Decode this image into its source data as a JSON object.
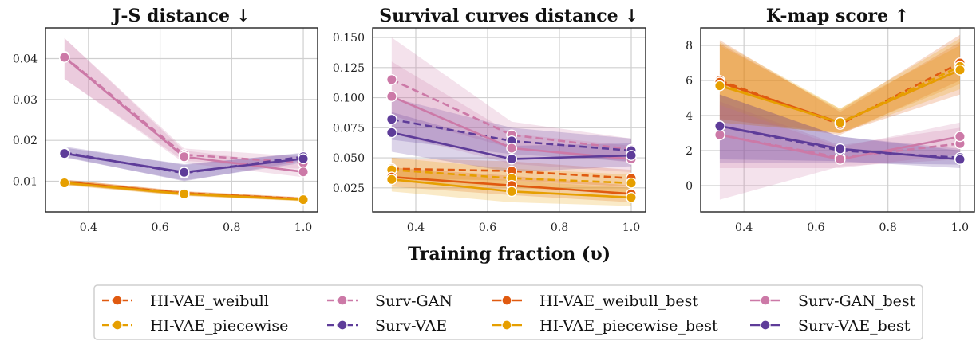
{
  "chart_data": {
    "type": "line",
    "xlabel": "Training fraction (υ)",
    "x": [
      0.333,
      0.667,
      1.0
    ],
    "series_styles": [
      {
        "name": "HI-VAE_weibull",
        "color": "#e05a10",
        "dashed": true
      },
      {
        "name": "HI-VAE_piecewise",
        "color": "#e69f00",
        "dashed": true
      },
      {
        "name": "Surv-GAN",
        "color": "#cc79a7",
        "dashed": true
      },
      {
        "name": "Surv-VAE",
        "color": "#5e3c99",
        "dashed": true
      },
      {
        "name": "HI-VAE_weibull_best",
        "color": "#e05a10",
        "dashed": false
      },
      {
        "name": "HI-VAE_piecewise_best",
        "color": "#e69f00",
        "dashed": false
      },
      {
        "name": "Surv-GAN_best",
        "color": "#cc79a7",
        "dashed": false
      },
      {
        "name": "Surv-VAE_best",
        "color": "#5e3c99",
        "dashed": false
      }
    ],
    "legend": {
      "placement": "bottom-center",
      "entries": [
        "HI-VAE_weibull",
        "HI-VAE_piecewise",
        "Surv-GAN",
        "Surv-VAE",
        "HI-VAE_weibull_best",
        "HI-VAE_piecewise_best",
        "Surv-GAN_best",
        "Surv-VAE_best"
      ]
    },
    "panels": [
      {
        "title": "J-S distance ↓",
        "xlim": [
          0.28,
          1.04
        ],
        "ylim": [
          0.0025,
          0.0475
        ],
        "xticks": [
          0.4,
          0.6,
          0.8,
          1.0
        ],
        "xtick_labels": [
          "0.4",
          "0.6",
          "0.8",
          "1.0"
        ],
        "yticks": [
          0.01,
          0.02,
          0.03,
          0.04
        ],
        "ytick_labels": [
          "0.01",
          "0.02",
          "0.03",
          "0.04"
        ],
        "series": [
          {
            "name": "HI-VAE_weibull",
            "values": [
              0.0098,
              0.0071,
              0.0057
            ],
            "lower": [
              0.0092,
              0.0066,
              0.0053
            ],
            "upper": [
              0.0104,
              0.0076,
              0.0061
            ]
          },
          {
            "name": "HI-VAE_piecewise",
            "values": [
              0.0097,
              0.007,
              0.0056
            ],
            "lower": [
              0.0091,
              0.0065,
              0.0052
            ],
            "upper": [
              0.0103,
              0.0075,
              0.006
            ]
          },
          {
            "name": "Surv-GAN",
            "values": [
              0.0405,
              0.0165,
              0.0145
            ],
            "lower": [
              0.035,
              0.015,
              0.013
            ],
            "upper": [
              0.045,
              0.018,
              0.016
            ]
          },
          {
            "name": "Surv-VAE",
            "values": [
              0.017,
              0.012,
              0.016
            ],
            "lower": [
              0.016,
              0.01,
              0.015
            ],
            "upper": [
              0.0185,
              0.014,
              0.017
            ]
          },
          {
            "name": "HI-VAE_weibull_best",
            "values": [
              0.0098,
              0.007,
              0.0056
            ],
            "lower": [
              0.0092,
              0.0065,
              0.0052
            ],
            "upper": [
              0.0104,
              0.0075,
              0.006
            ]
          },
          {
            "name": "HI-VAE_piecewise_best",
            "values": [
              0.0096,
              0.0069,
              0.0055
            ],
            "lower": [
              0.009,
              0.0064,
              0.0051
            ],
            "upper": [
              0.0102,
              0.0074,
              0.0059
            ]
          },
          {
            "name": "Surv-GAN_best",
            "values": [
              0.0403,
              0.016,
              0.0123
            ],
            "lower": [
              0.035,
              0.0145,
              0.011
            ],
            "upper": [
              0.045,
              0.0175,
              0.014
            ]
          },
          {
            "name": "Surv-VAE_best",
            "values": [
              0.0168,
              0.0122,
              0.0155
            ],
            "lower": [
              0.0158,
              0.0102,
              0.0145
            ],
            "upper": [
              0.0182,
              0.0142,
              0.0168
            ]
          }
        ]
      },
      {
        "title": "Survival curves distance ↓",
        "xlim": [
          0.28,
          1.04
        ],
        "ylim": [
          0.005,
          0.158
        ],
        "xticks": [
          0.4,
          0.6,
          0.8,
          1.0
        ],
        "xtick_labels": [
          "0.4",
          "0.6",
          "0.8",
          "1.0"
        ],
        "yticks": [
          0.025,
          0.05,
          0.075,
          0.1,
          0.125,
          0.15
        ],
        "ytick_labels": [
          "0.025",
          "0.050",
          "0.075",
          "0.100",
          "0.125",
          "0.150"
        ],
        "series": [
          {
            "name": "HI-VAE_weibull",
            "values": [
              0.041,
              0.039,
              0.033
            ],
            "lower": [
              0.033,
              0.031,
              0.026
            ],
            "upper": [
              0.05,
              0.047,
              0.04
            ]
          },
          {
            "name": "HI-VAE_piecewise",
            "values": [
              0.04,
              0.033,
              0.029
            ],
            "lower": [
              0.03,
              0.025,
              0.021
            ],
            "upper": [
              0.05,
              0.041,
              0.036
            ]
          },
          {
            "name": "Surv-GAN",
            "values": [
              0.115,
              0.069,
              0.057
            ],
            "lower": [
              0.085,
              0.058,
              0.046
            ],
            "upper": [
              0.15,
              0.08,
              0.066
            ]
          },
          {
            "name": "Surv-VAE",
            "values": [
              0.082,
              0.064,
              0.056
            ],
            "lower": [
              0.065,
              0.053,
              0.047
            ],
            "upper": [
              0.1,
              0.075,
              0.066
            ]
          },
          {
            "name": "HI-VAE_weibull_best",
            "values": [
              0.034,
              0.027,
              0.02
            ],
            "lower": [
              0.026,
              0.019,
              0.013
            ],
            "upper": [
              0.042,
              0.035,
              0.027
            ]
          },
          {
            "name": "HI-VAE_piecewise_best",
            "values": [
              0.032,
              0.022,
              0.017
            ],
            "lower": [
              0.022,
              0.013,
              0.01
            ],
            "upper": [
              0.042,
              0.031,
              0.025
            ]
          },
          {
            "name": "Surv-GAN_best",
            "values": [
              0.101,
              0.058,
              0.049
            ],
            "lower": [
              0.07,
              0.045,
              0.038
            ],
            "upper": [
              0.13,
              0.07,
              0.06
            ]
          },
          {
            "name": "Surv-VAE_best",
            "values": [
              0.071,
              0.049,
              0.052
            ],
            "lower": [
              0.055,
              0.038,
              0.043
            ],
            "upper": [
              0.088,
              0.06,
              0.062
            ]
          }
        ]
      },
      {
        "title": "K-map score ↑",
        "xlim": [
          0.28,
          1.04
        ],
        "ylim": [
          -1.5,
          9.0
        ],
        "xticks": [
          0.4,
          0.6,
          0.8,
          1.0
        ],
        "xtick_labels": [
          "0.4",
          "0.6",
          "0.8",
          "1.0"
        ],
        "yticks": [
          0,
          2,
          4,
          6,
          8
        ],
        "ytick_labels": [
          "0",
          "2",
          "4",
          "6",
          "8"
        ],
        "series": [
          {
            "name": "HI-VAE_weibull",
            "values": [
              6.0,
              3.5,
              7.0
            ],
            "lower": [
              3.8,
              2.9,
              6.0
            ],
            "upper": [
              8.3,
              4.2,
              8.2
            ]
          },
          {
            "name": "HI-VAE_piecewise",
            "values": [
              5.8,
              3.6,
              6.8
            ],
            "lower": [
              3.6,
              3.0,
              5.8
            ],
            "upper": [
              8.2,
              4.4,
              8.0
            ]
          },
          {
            "name": "Surv-GAN",
            "values": [
              2.9,
              1.6,
              2.4
            ],
            "lower": [
              -0.8,
              1.1,
              1.5
            ],
            "upper": [
              4.8,
              2.3,
              3.3
            ]
          },
          {
            "name": "Surv-VAE",
            "values": [
              3.4,
              2.0,
              1.6
            ],
            "lower": [
              1.3,
              1.3,
              1.2
            ],
            "upper": [
              5.2,
              2.8,
              2.1
            ]
          },
          {
            "name": "HI-VAE_weibull_best",
            "values": [
              5.9,
              3.6,
              6.6
            ],
            "lower": [
              3.8,
              3.0,
              5.2
            ],
            "upper": [
              8.1,
              4.3,
              8.6
            ]
          },
          {
            "name": "HI-VAE_piecewise_best",
            "values": [
              5.7,
              3.6,
              6.6
            ],
            "lower": [
              3.6,
              3.0,
              5.5
            ],
            "upper": [
              8.0,
              4.4,
              8.4
            ]
          },
          {
            "name": "Surv-GAN_best",
            "values": [
              2.9,
              1.5,
              2.8
            ],
            "lower": [
              1.0,
              1.0,
              1.8
            ],
            "upper": [
              4.6,
              2.2,
              3.6
            ]
          },
          {
            "name": "Surv-VAE_best",
            "values": [
              3.4,
              2.1,
              1.5
            ],
            "lower": [
              1.5,
              1.4,
              1.0
            ],
            "upper": [
              5.2,
              2.8,
              2.0
            ]
          }
        ]
      }
    ]
  }
}
